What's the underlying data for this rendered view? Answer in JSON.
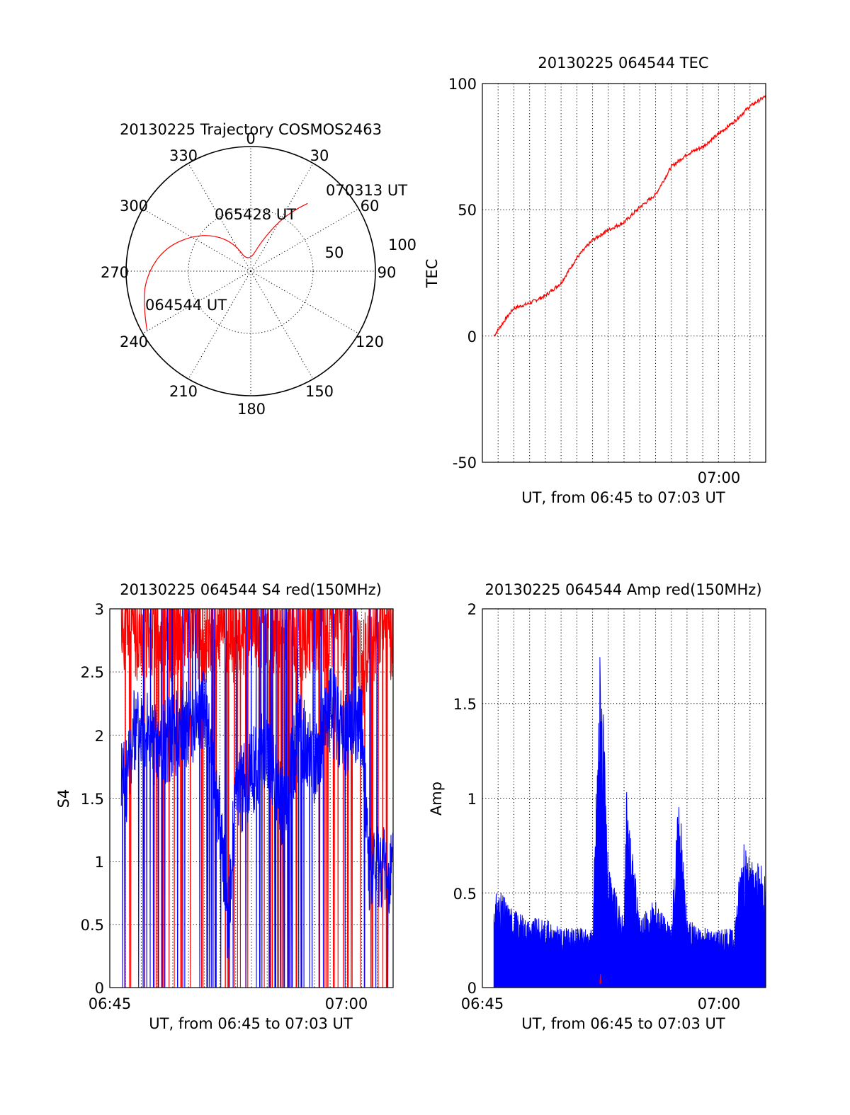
{
  "chart_data": [
    {
      "type": "polar",
      "title": "20130225 Trajectory COSMOS2463",
      "angle_labels": [
        "0",
        "30",
        "60",
        "90",
        "120",
        "150",
        "180",
        "210",
        "240",
        "270",
        "300",
        "330"
      ],
      "radius_labels": [
        "50",
        "100"
      ],
      "rlim": [
        0,
        100
      ],
      "grid": true,
      "series": [
        {
          "color": "#ff0000",
          "points": [
            {
              "az": 240,
              "r": 96
            },
            {
              "az": 255,
              "r": 90
            },
            {
              "az": 270,
              "r": 82
            },
            {
              "az": 285,
              "r": 71
            },
            {
              "az": 300,
              "r": 56
            },
            {
              "az": 315,
              "r": 41
            },
            {
              "az": 330,
              "r": 25
            },
            {
              "az": 345,
              "r": 7
            },
            {
              "az": 20,
              "r": 26
            },
            {
              "az": 30,
              "r": 47
            },
            {
              "az": 36,
              "r": 61
            },
            {
              "az": 40,
              "r": 71
            }
          ]
        }
      ],
      "annotations": [
        {
          "text": "064544 UT",
          "az": 240,
          "r": 96
        },
        {
          "text": "065428 UT",
          "az": 340,
          "r": 42
        },
        {
          "text": "070313 UT",
          "az": 40,
          "r": 71
        }
      ]
    },
    {
      "type": "line",
      "title": "20130225 064544 TEC",
      "xlabel": "UT, from 06:45 to 07:03 UT",
      "ylabel": "TEC",
      "xlim": [
        "06:45",
        "07:03"
      ],
      "ylim": [
        -50,
        100
      ],
      "x_ticks": [
        "07:00"
      ],
      "y_ticks": [
        "-50",
        "0",
        "50",
        "100"
      ],
      "grid": true,
      "series": [
        {
          "color": "#ff0000",
          "x": [
            "06:45:44",
            "06:46:30",
            "06:47:00",
            "06:48:00",
            "06:49:00",
            "06:50:00",
            "06:51:00",
            "06:52:00",
            "06:53:00",
            "06:54:00",
            "06:55:00",
            "06:56:00",
            "06:57:00",
            "06:58:00",
            "06:59:00",
            "07:00:00",
            "07:01:00",
            "07:02:00",
            "07:03:00"
          ],
          "y": [
            0,
            7,
            11,
            13,
            16,
            21,
            31,
            38,
            42,
            45,
            51,
            56,
            67,
            72,
            75,
            80,
            85,
            91,
            95
          ]
        }
      ]
    },
    {
      "type": "line",
      "title": "20130225 064544 S4 red(150MHz)",
      "xlabel": "UT, from 06:45 to 07:03 UT",
      "ylabel": "S4",
      "xlim": [
        "06:45",
        "07:03"
      ],
      "ylim": [
        0,
        3
      ],
      "x_ticks": [
        "06:45",
        "07:00"
      ],
      "y_ticks": [
        "0",
        "0.5",
        "1",
        "1.5",
        "2",
        "2.5",
        "3"
      ],
      "grid": true,
      "series": [
        {
          "color": "#ff0000",
          "x": [
            "06:45:44",
            "06:47:00",
            "06:48:00",
            "06:49:00",
            "06:50:00",
            "06:51:00",
            "06:52:00",
            "06:53:00",
            "06:54:00",
            "06:55:00",
            "06:56:00",
            "06:57:00",
            "06:58:00",
            "06:59:00",
            "07:00:00",
            "07:01:00",
            "07:02:00",
            "07:03:00"
          ],
          "y": [
            2.9,
            2.8,
            2.9,
            2.8,
            2.9,
            2.8,
            2.9,
            2.8,
            2.9,
            2.8,
            2.9,
            2.8,
            2.9,
            2.9,
            2.9,
            2.5,
            2.9,
            2.8
          ]
        },
        {
          "color": "#0000ff",
          "x": [
            "06:45:44",
            "06:46:00",
            "06:46:30",
            "06:47:00",
            "06:48:00",
            "06:49:00",
            "06:50:00",
            "06:51:00",
            "06:52:00",
            "06:52:30",
            "06:53:00",
            "06:54:00",
            "06:55:00",
            "06:56:00",
            "06:57:00",
            "06:58:00",
            "06:59:00",
            "07:00:00",
            "07:01:00",
            "07:01:30",
            "07:02:00",
            "07:03:00"
          ],
          "y": [
            1.7,
            1.6,
            2.0,
            2.1,
            1.9,
            2.0,
            2.1,
            2.2,
            1.3,
            0.5,
            1.5,
            1.7,
            1.9,
            1.4,
            2.0,
            1.8,
            2.2,
            2.0,
            2.1,
            0.9,
            1.0,
            0.9
          ]
        }
      ]
    },
    {
      "type": "line",
      "title": "20130225 064544 Amp red(150MHz)",
      "xlabel": "UT, from 06:45 to 07:03 UT",
      "ylabel": "Amp",
      "xlim": [
        "06:45",
        "07:03"
      ],
      "ylim": [
        0,
        2
      ],
      "x_ticks": [
        "06:45",
        "07:00"
      ],
      "y_ticks": [
        "0",
        "0.5",
        "1",
        "1.5",
        "2"
      ],
      "grid": true,
      "series": [
        {
          "color": "#0000ff",
          "x": [
            "06:45:44",
            "06:46:00",
            "06:47:00",
            "06:48:00",
            "06:49:00",
            "06:50:00",
            "06:51:00",
            "06:52:00",
            "06:52:30",
            "06:53:00",
            "06:54:00",
            "06:54:10",
            "06:55:00",
            "06:56:00",
            "06:57:00",
            "06:57:30",
            "06:58:00",
            "06:59:00",
            "07:00:00",
            "07:01:00",
            "07:01:30",
            "07:02:00",
            "07:03:00"
          ],
          "y": [
            0.45,
            0.5,
            0.4,
            0.35,
            0.35,
            0.3,
            0.3,
            0.3,
            1.85,
            0.6,
            0.35,
            1.0,
            0.35,
            0.45,
            0.3,
            1.05,
            0.35,
            0.3,
            0.3,
            0.3,
            0.75,
            0.65,
            0.6
          ]
        },
        {
          "color": "#ff0000",
          "x": [
            "06:52:28",
            "06:52:30",
            "06:52:32"
          ],
          "y": [
            0.02,
            0.07,
            0.02
          ]
        }
      ]
    }
  ]
}
